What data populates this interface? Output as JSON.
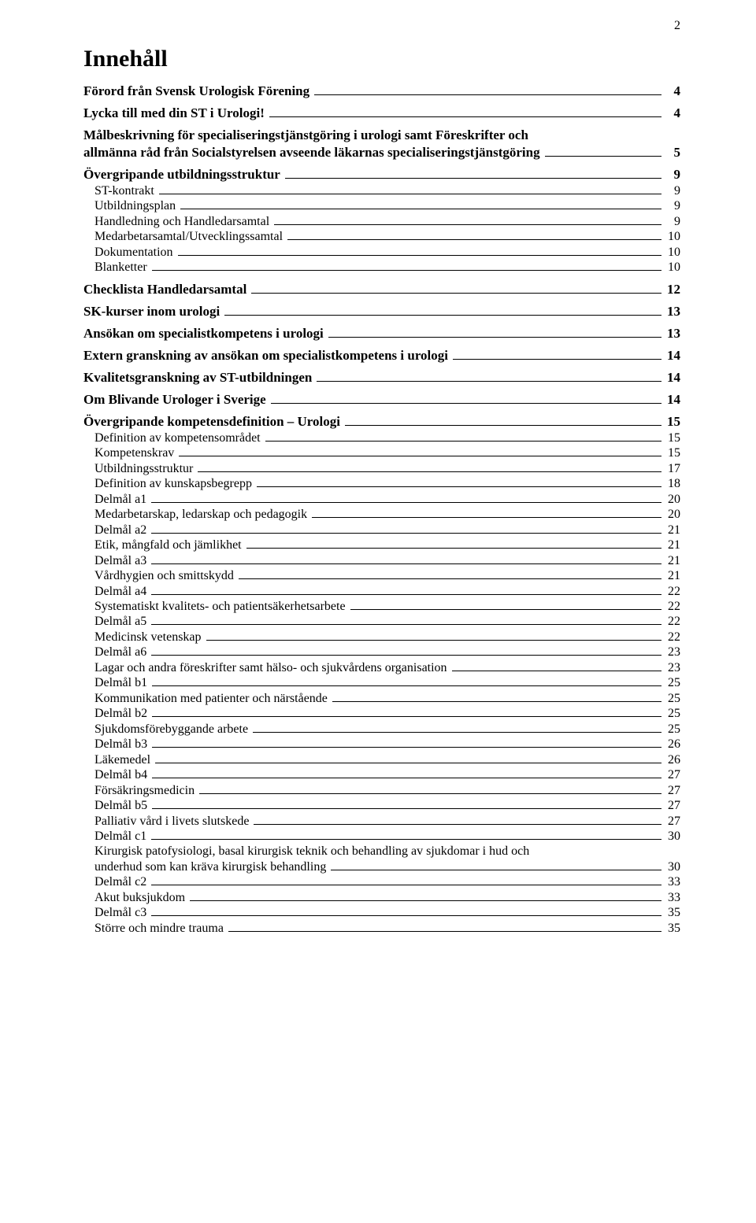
{
  "page_number": "2",
  "title": "Innehåll",
  "typography": {
    "font_family": "Times New Roman",
    "title_fontsize_pt": 22,
    "lvl1_fontsize_pt": 13,
    "lvl2_fontsize_pt": 12,
    "text_color": "#000000",
    "leader_color": "#000000",
    "background_color": "#ffffff"
  },
  "toc": [
    {
      "level": 1,
      "label": "Förord från Svensk Urologisk Förening",
      "page": "4"
    },
    {
      "level": 1,
      "label": "Lycka till med din ST i Urologi!",
      "page": "4"
    },
    {
      "level": 1,
      "label": "Målbeskrivning för specialiseringstjänstgöring i urologi samt Föreskrifter och allmänna råd från Socialstyrelsen avseende läkarnas specialiseringstjänstgöring",
      "page": "5"
    },
    {
      "level": 1,
      "label": "Övergripande utbildningsstruktur",
      "page": "9"
    },
    {
      "level": 2,
      "label": "ST-kontrakt",
      "page": "9"
    },
    {
      "level": 2,
      "label": "Utbildningsplan",
      "page": "9"
    },
    {
      "level": 2,
      "label": "Handledning och Handledarsamtal",
      "page": "9"
    },
    {
      "level": 2,
      "label": "Medarbetarsamtal/Utvecklingssamtal",
      "page": "10"
    },
    {
      "level": 2,
      "label": "Dokumentation",
      "page": "10"
    },
    {
      "level": 2,
      "label": "Blanketter",
      "page": "10"
    },
    {
      "level": 1,
      "label": "Checklista Handledarsamtal",
      "page": "12"
    },
    {
      "level": 1,
      "label": "SK-kurser inom urologi",
      "page": "13"
    },
    {
      "level": 1,
      "label": "Ansökan om specialistkompetens i urologi",
      "page": "13"
    },
    {
      "level": 1,
      "label": "Extern granskning av ansökan om specialistkompetens i urologi",
      "page": "14"
    },
    {
      "level": 1,
      "label": "Kvalitetsgranskning av ST-utbildningen",
      "page": "14"
    },
    {
      "level": 1,
      "label": "Om Blivande Urologer i Sverige",
      "page": "14"
    },
    {
      "level": 1,
      "label": "Övergripande kompetensdefinition – Urologi",
      "page": "15"
    },
    {
      "level": 2,
      "label": "Definition av kompetensområdet",
      "page": "15"
    },
    {
      "level": 2,
      "label": "Kompetenskrav",
      "page": "15"
    },
    {
      "level": 2,
      "label": "Utbildningsstruktur",
      "page": "17"
    },
    {
      "level": 2,
      "label": "Definition av kunskapsbegrepp",
      "page": "18"
    },
    {
      "level": 2,
      "label": "Delmål a1",
      "page": "20"
    },
    {
      "level": 2,
      "label": "Medarbetarskap, ledarskap och pedagogik",
      "page": "20"
    },
    {
      "level": 2,
      "label": "Delmål a2",
      "page": "21"
    },
    {
      "level": 2,
      "label": "Etik, mångfald och jämlikhet",
      "page": "21"
    },
    {
      "level": 2,
      "label": "Delmål a3",
      "page": "21"
    },
    {
      "level": 2,
      "label": "Vårdhygien och smittskydd",
      "page": "21"
    },
    {
      "level": 2,
      "label": "Delmål a4",
      "page": "22"
    },
    {
      "level": 2,
      "label": "Systematiskt kvalitets- och patientsäkerhetsarbete",
      "page": "22"
    },
    {
      "level": 2,
      "label": "Delmål a5",
      "page": "22"
    },
    {
      "level": 2,
      "label": "Medicinsk vetenskap",
      "page": "22"
    },
    {
      "level": 2,
      "label": "Delmål a6",
      "page": "23"
    },
    {
      "level": 2,
      "label": "Lagar och andra föreskrifter samt hälso- och sjukvårdens organisation",
      "page": "23"
    },
    {
      "level": 2,
      "label": "Delmål b1",
      "page": "25"
    },
    {
      "level": 2,
      "label": "Kommunikation med patienter och närstående",
      "page": "25"
    },
    {
      "level": 2,
      "label": "Delmål b2",
      "page": "25"
    },
    {
      "level": 2,
      "label": "Sjukdomsförebyggande arbete",
      "page": "25"
    },
    {
      "level": 2,
      "label": "Delmål b3",
      "page": "26"
    },
    {
      "level": 2,
      "label": "Läkemedel",
      "page": "26"
    },
    {
      "level": 2,
      "label": "Delmål b4",
      "page": "27"
    },
    {
      "level": 2,
      "label": "Försäkringsmedicin",
      "page": "27"
    },
    {
      "level": 2,
      "label": "Delmål b5",
      "page": "27"
    },
    {
      "level": 2,
      "label": "Palliativ vård i livets slutskede",
      "page": "27"
    },
    {
      "level": 2,
      "label": "Delmål c1",
      "page": "30"
    },
    {
      "level": 2,
      "label": "Kirurgisk patofysiologi, basal kirurgisk teknik och behandling av sjukdomar i hud och underhud som kan kräva kirurgisk behandling",
      "page": "30"
    },
    {
      "level": 2,
      "label": "Delmål c2",
      "page": "33"
    },
    {
      "level": 2,
      "label": "Akut buksjukdom",
      "page": "33"
    },
    {
      "level": 2,
      "label": "Delmål c3",
      "page": "35"
    },
    {
      "level": 2,
      "label": "Större och mindre trauma",
      "page": "35"
    }
  ]
}
